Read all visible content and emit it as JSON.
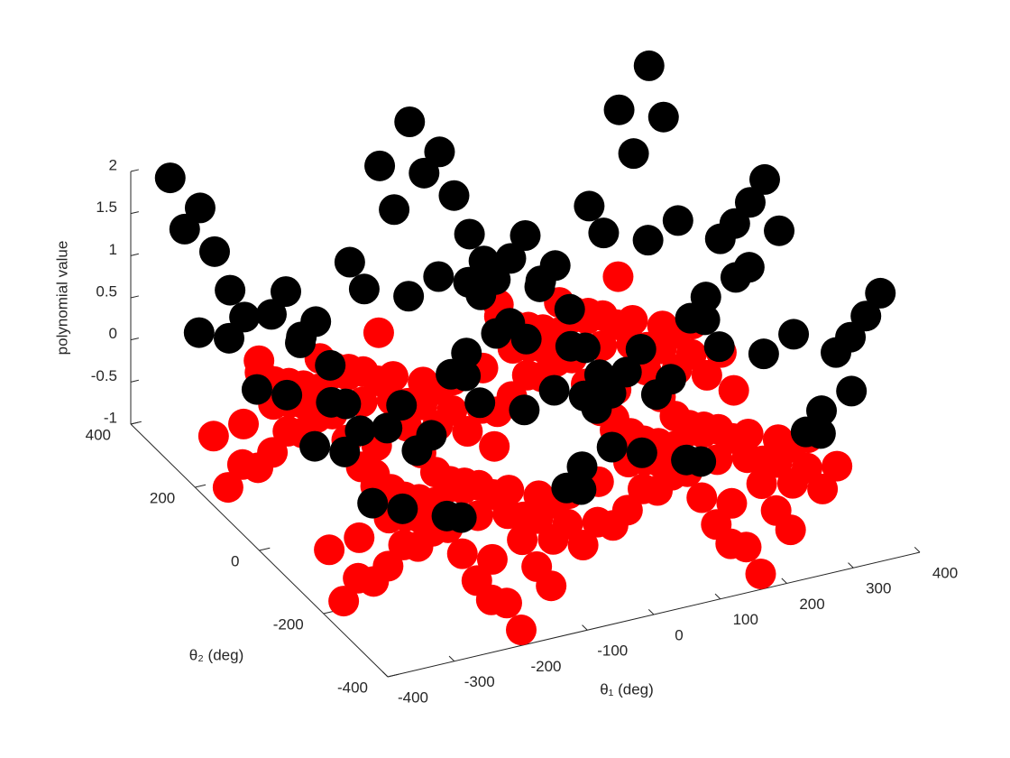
{
  "chart_data": {
    "type": "scatter3d",
    "xlabel": "θ₁ (deg)",
    "ylabel": "θ₂ (deg)",
    "zlabel": "polynomial value",
    "xlim": [
      -400,
      400
    ],
    "xticks": [
      -400,
      -300,
      -200,
      -100,
      0,
      100,
      200,
      300,
      400
    ],
    "ylim": [
      -400,
      400
    ],
    "yticks": [
      -400,
      -200,
      0,
      200,
      400
    ],
    "zlim": [
      -1,
      2
    ],
    "zticks": [
      -1,
      -0.5,
      0,
      0.5,
      1,
      1.5,
      2
    ],
    "colors": [
      "#ff0000",
      "#000000"
    ],
    "color_threshold": 0,
    "x": [
      -360,
      -315,
      -270,
      -225,
      -180,
      -135,
      -90,
      -45,
      0,
      45,
      90,
      135,
      180,
      225,
      270,
      315,
      360
    ],
    "y": [
      -360,
      -315,
      -270,
      -225,
      -180,
      -135,
      -90,
      -45,
      0,
      45,
      90,
      135,
      180,
      225,
      270,
      315,
      360
    ],
    "z": [
      [
        2,
        1.56,
        0.5,
        -0.56,
        -1,
        -0.56,
        0.5,
        1.56,
        2,
        1.56,
        0.5,
        -0.56,
        -1,
        -0.56,
        0.5,
        1.56,
        2
      ],
      [
        1.56,
        1.21,
        0.35,
        -0.5,
        -0.85,
        -0.5,
        0.35,
        1.21,
        1.56,
        1.21,
        0.35,
        -0.5,
        -0.85,
        -0.5,
        0.35,
        1.21,
        1.56
      ],
      [
        0.5,
        0.35,
        0,
        -0.35,
        -0.5,
        -0.35,
        0,
        0.35,
        0.5,
        0.35,
        0,
        -0.35,
        -0.5,
        -0.35,
        0,
        0.35,
        0.5
      ],
      [
        -0.56,
        -0.5,
        -0.35,
        -0.21,
        -0.15,
        -0.21,
        -0.35,
        -0.5,
        -0.56,
        -0.5,
        -0.35,
        -0.21,
        -0.15,
        -0.21,
        -0.35,
        -0.5,
        -0.56
      ],
      [
        -1,
        -0.85,
        -0.5,
        -0.15,
        0,
        -0.15,
        -0.5,
        -0.85,
        -1,
        -0.85,
        -0.5,
        -0.15,
        0,
        -0.15,
        -0.5,
        -0.85,
        -1
      ],
      [
        -0.56,
        -0.5,
        -0.35,
        -0.21,
        -0.15,
        -0.21,
        -0.35,
        -0.5,
        -0.56,
        -0.5,
        -0.35,
        -0.21,
        -0.15,
        -0.21,
        -0.35,
        -0.5,
        -0.56
      ],
      [
        0.5,
        0.35,
        0,
        -0.35,
        -0.5,
        -0.35,
        0,
        0.35,
        0.5,
        0.35,
        0,
        -0.35,
        -0.5,
        -0.35,
        0,
        0.35,
        0.5
      ],
      [
        1.56,
        1.21,
        0.35,
        -0.5,
        -0.85,
        -0.5,
        0.35,
        1.21,
        1.56,
        1.21,
        0.35,
        -0.5,
        -0.85,
        -0.5,
        0.35,
        1.21,
        1.56
      ],
      [
        2,
        1.56,
        0.5,
        -0.56,
        -1,
        -0.56,
        0.5,
        1.56,
        2,
        1.56,
        0.5,
        -0.56,
        -1,
        -0.56,
        0.5,
        1.56,
        2
      ],
      [
        1.56,
        1.21,
        0.35,
        -0.5,
        -0.85,
        -0.5,
        0.35,
        1.21,
        1.56,
        1.21,
        0.35,
        -0.5,
        -0.85,
        -0.5,
        0.35,
        1.21,
        1.56
      ],
      [
        0.5,
        0.35,
        0,
        -0.35,
        -0.5,
        -0.35,
        0,
        0.35,
        0.5,
        0.35,
        0,
        -0.35,
        -0.5,
        -0.35,
        0,
        0.35,
        0.5
      ],
      [
        -0.56,
        -0.5,
        -0.35,
        -0.21,
        -0.15,
        -0.21,
        -0.35,
        -0.5,
        -0.56,
        -0.5,
        -0.35,
        -0.21,
        -0.15,
        -0.21,
        -0.35,
        -0.5,
        -0.56
      ],
      [
        -1,
        -0.85,
        -0.5,
        -0.15,
        0,
        -0.15,
        -0.5,
        -0.85,
        -1,
        -0.85,
        -0.5,
        -0.15,
        0,
        -0.15,
        -0.5,
        -0.85,
        -1
      ],
      [
        -0.56,
        -0.5,
        -0.35,
        -0.21,
        -0.15,
        -0.21,
        -0.35,
        -0.5,
        -0.56,
        -0.5,
        -0.35,
        -0.21,
        -0.15,
        -0.21,
        -0.35,
        -0.5,
        -0.56
      ],
      [
        0.5,
        0.35,
        0,
        -0.35,
        -0.5,
        -0.35,
        0,
        0.35,
        0.5,
        0.35,
        0,
        -0.35,
        -0.5,
        -0.35,
        0,
        0.35,
        0.5
      ],
      [
        1.56,
        1.21,
        0.35,
        -0.5,
        -0.85,
        -0.5,
        0.35,
        1.21,
        1.56,
        1.21,
        0.35,
        -0.5,
        -0.85,
        -0.5,
        0.35,
        1.21,
        1.56
      ],
      [
        2,
        1.56,
        0.5,
        -0.56,
        -1,
        -0.56,
        0.5,
        1.56,
        2,
        1.56,
        0.5,
        -0.56,
        -1,
        -0.56,
        0.5,
        1.56,
        2
      ]
    ]
  }
}
